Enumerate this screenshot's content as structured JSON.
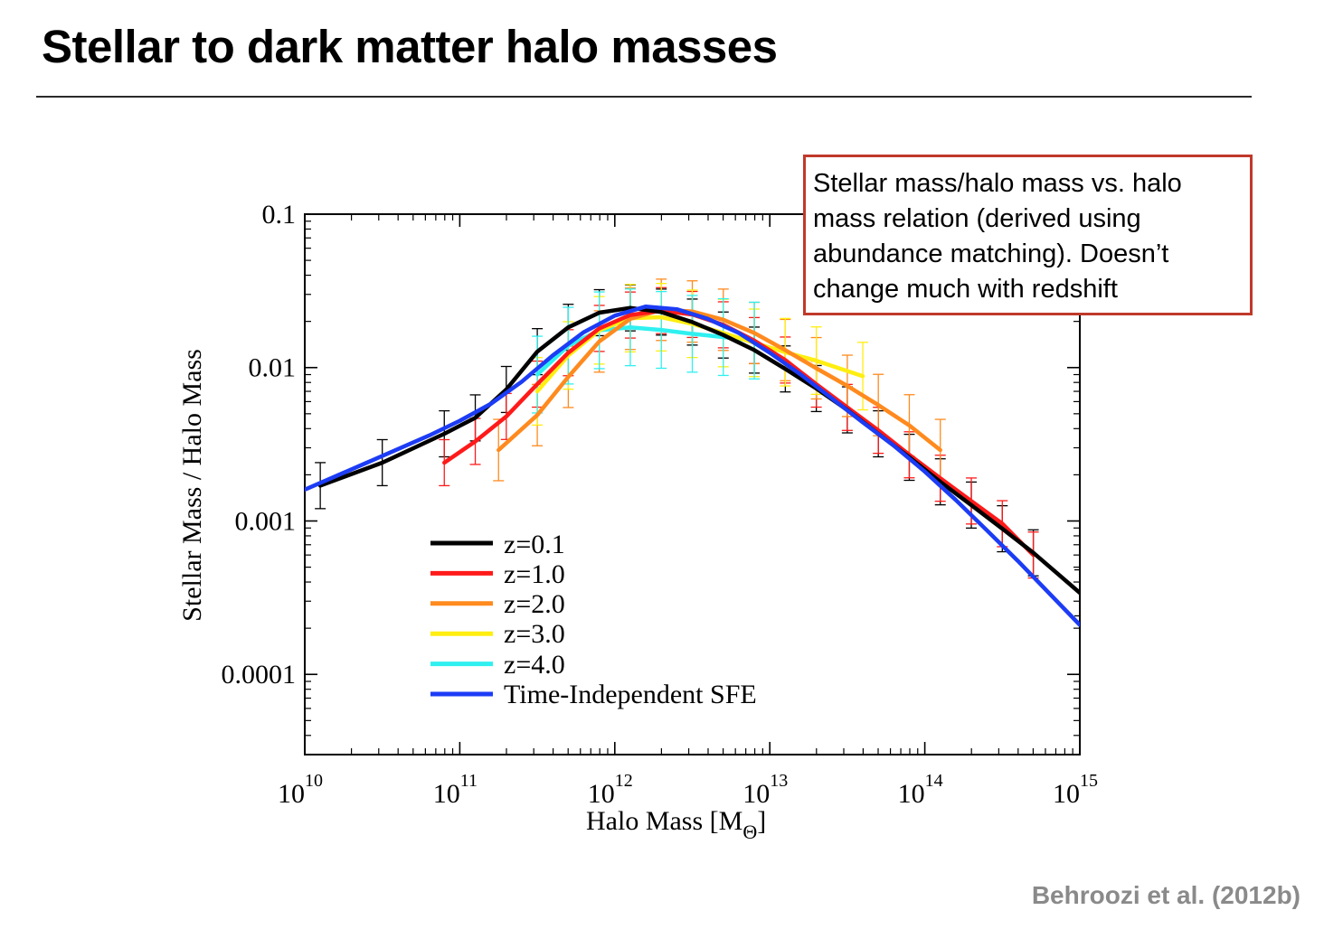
{
  "slide": {
    "title": "Stellar to dark matter halo masses",
    "callout": "Stellar mass/halo mass vs. halo mass relation (derived using abundance matching). Doesn’t change much with redshift",
    "citation": "Behroozi et al. (2012b)"
  },
  "chart_data": {
    "type": "line",
    "xlabel": "Halo Mass [M",
    "xlabel_sub": "Θ",
    "xlabel_close": "]",
    "ylabel": "Stellar Mass / Halo Mass",
    "xscale": "log",
    "yscale": "log",
    "xlim": [
      10,
      15
    ],
    "ylim": [
      3e-05,
      0.1
    ],
    "x_unit": "log10 Halo Mass",
    "x_ticks": [
      "10",
      "11",
      "12",
      "13",
      "14",
      "15"
    ],
    "x_tick_base": "10",
    "y_ticks": [
      {
        "value": 0.1,
        "label": "0.1"
      },
      {
        "value": 0.01,
        "label": "0.01"
      },
      {
        "value": 0.001,
        "label": "0.001"
      },
      {
        "value": 0.0001,
        "label": "0.0001"
      }
    ],
    "legend_position": "bottom-left",
    "series": [
      {
        "name": "z=0.1",
        "color": "#000000",
        "x": [
          10.1,
          10.5,
          10.9,
          11.1,
          11.3,
          11.5,
          11.7,
          11.9,
          12.1,
          12.3,
          12.5,
          12.7,
          12.9,
          13.1,
          13.3,
          13.5,
          13.7,
          13.9,
          14.1,
          14.3,
          14.5,
          14.7,
          15.0
        ],
        "y": [
          0.0017,
          0.0024,
          0.0037,
          0.0047,
          0.0072,
          0.0127,
          0.0183,
          0.0228,
          0.0245,
          0.023,
          0.0198,
          0.0163,
          0.013,
          0.0098,
          0.0073,
          0.0053,
          0.0037,
          0.0026,
          0.0018,
          0.00127,
          0.00089,
          0.00062,
          0.00034
        ],
        "err": 0.15
      },
      {
        "name": "z=1.0",
        "color": "#ff1a1a",
        "x": [
          10.9,
          11.1,
          11.3,
          11.5,
          11.7,
          11.9,
          12.1,
          12.3,
          12.5,
          12.7,
          12.9,
          13.1,
          13.3,
          13.5,
          13.7,
          13.9,
          14.1,
          14.3,
          14.5,
          14.7
        ],
        "y": [
          0.0024,
          0.0033,
          0.0048,
          0.0078,
          0.0125,
          0.018,
          0.022,
          0.0235,
          0.0222,
          0.019,
          0.015,
          0.0112,
          0.0078,
          0.0055,
          0.0039,
          0.0027,
          0.0019,
          0.00135,
          0.00096,
          0.0006
        ],
        "err": 0.15
      },
      {
        "name": "z=2.0",
        "color": "#ff8a1e",
        "x": [
          11.25,
          11.5,
          11.7,
          11.9,
          12.1,
          12.3,
          12.5,
          12.7,
          12.9,
          13.1,
          13.3,
          13.5,
          13.7,
          13.9,
          14.1
        ],
        "y": [
          0.0029,
          0.0049,
          0.0087,
          0.0148,
          0.0208,
          0.0238,
          0.0232,
          0.0205,
          0.0168,
          0.013,
          0.0099,
          0.0076,
          0.0057,
          0.0042,
          0.0029
        ],
        "err": 0.2
      },
      {
        "name": "z=3.0",
        "color": "#ffee10",
        "x": [
          11.5,
          11.7,
          11.9,
          12.1,
          12.3,
          12.5,
          12.7,
          12.9,
          13.1,
          13.3,
          13.6
        ],
        "y": [
          0.007,
          0.012,
          0.0175,
          0.021,
          0.0213,
          0.0193,
          0.0168,
          0.0145,
          0.0126,
          0.0111,
          0.0088
        ],
        "err": 0.22
      },
      {
        "name": "z=4.0",
        "color": "#2ff0f0",
        "x": [
          11.5,
          11.7,
          11.9,
          12.1,
          12.3,
          12.5,
          12.7,
          12.9
        ],
        "y": [
          0.009,
          0.0139,
          0.0175,
          0.0183,
          0.0176,
          0.0166,
          0.0158,
          0.015
        ],
        "err": 0.25
      },
      {
        "name": "Time-Independent SFE",
        "color": "#1c3cf5",
        "x": [
          10.0,
          10.4,
          10.8,
          11.0,
          11.2,
          11.4,
          11.6,
          11.8,
          12.0,
          12.2,
          12.4,
          12.6,
          12.8,
          13.0,
          13.2,
          13.4,
          13.6,
          13.8,
          14.0,
          14.2,
          14.4,
          14.6,
          15.0
        ],
        "y": [
          0.0016,
          0.0024,
          0.0036,
          0.0045,
          0.0058,
          0.0081,
          0.012,
          0.017,
          0.0218,
          0.025,
          0.024,
          0.0208,
          0.0168,
          0.0125,
          0.009,
          0.0063,
          0.0044,
          0.0031,
          0.0021,
          0.00137,
          0.00087,
          0.00055,
          0.00021
        ],
        "err": 0
      }
    ]
  }
}
